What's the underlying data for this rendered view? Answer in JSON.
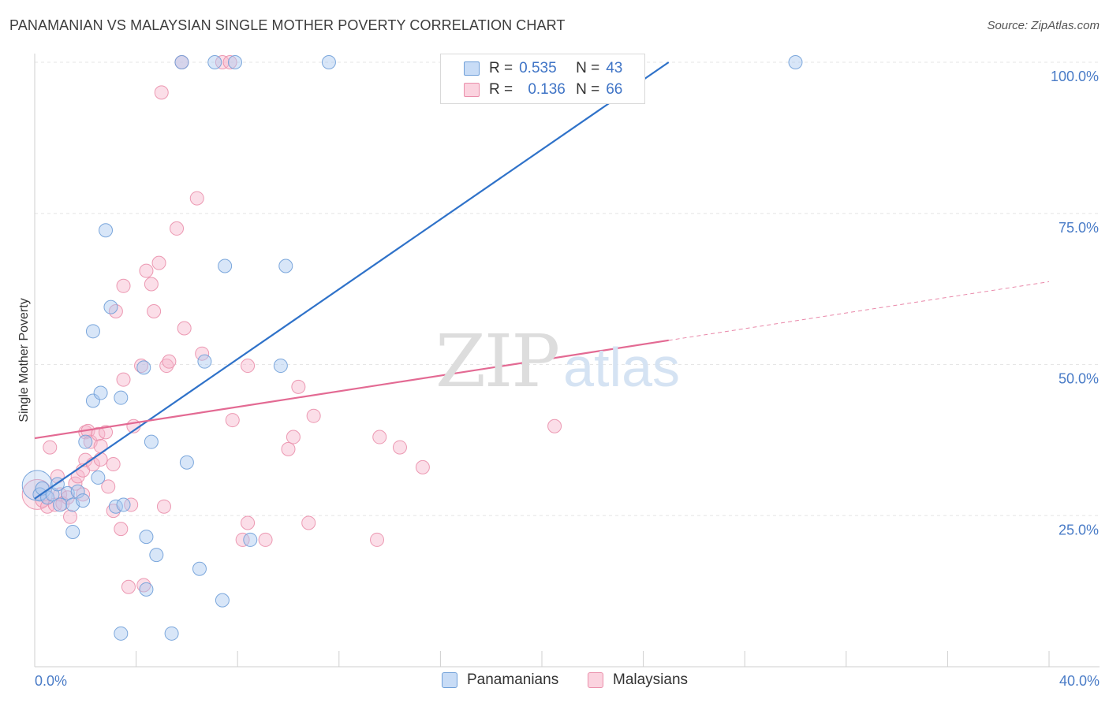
{
  "title": "PANAMANIAN VS MALAYSIAN SINGLE MOTHER POVERTY CORRELATION CHART",
  "source": "Source: ZipAtlas.com",
  "watermark": {
    "zip": "ZIP",
    "atlas": "atlas"
  },
  "legend": {
    "rows": [
      {
        "r_label": "R =",
        "r_value": "0.535",
        "n_label": "N =",
        "n_value": "43",
        "color": "#a8c8f0"
      },
      {
        "r_label": "R =",
        "r_value": "0.136",
        "n_label": "N =",
        "n_value": "66",
        "color": "#f7b6cb"
      }
    ]
  },
  "bottom_legend": {
    "series1": "Panamanians",
    "series2": "Malaysians"
  },
  "colors": {
    "blue_fill": "#a8c8f0",
    "blue_stroke": "#6f9fd8",
    "blue_line": "#2f72c9",
    "pink_fill": "#f7b6cb",
    "pink_stroke": "#ea8fab",
    "pink_line": "#e36a93",
    "axis_text": "#4a7cc7",
    "grid": "#e6e6e6"
  },
  "chart_data": {
    "type": "scatter",
    "title": "PANAMANIAN VS MALAYSIAN SINGLE MOTHER POVERTY CORRELATION CHART",
    "xlabel": "",
    "ylabel": "Single Mother Poverty",
    "xlim": [
      0,
      40
    ],
    "ylim": [
      0,
      105
    ],
    "x_tick_labels": [
      "0.0%",
      "40.0%"
    ],
    "y_tick_labels": [
      "25.0%",
      "50.0%",
      "75.0%",
      "100.0%"
    ],
    "y_ticks": [
      25,
      50,
      75,
      100
    ],
    "grid": true,
    "legend_position": "top-center",
    "series": [
      {
        "name": "Panamanians",
        "r": 0.535,
        "n": 43,
        "trend": {
          "x": [
            0.0,
            25.0
          ],
          "y": [
            27.8,
            100.0
          ],
          "dashed_extension": false
        },
        "points": [
          {
            "x": 0.1,
            "y": 30.0,
            "big": true
          },
          {
            "x": 0.2,
            "y": 28.5
          },
          {
            "x": 0.3,
            "y": 29.5
          },
          {
            "x": 0.5,
            "y": 28.0
          },
          {
            "x": 0.7,
            "y": 28.5
          },
          {
            "x": 0.9,
            "y": 30.2
          },
          {
            "x": 1.0,
            "y": 26.8
          },
          {
            "x": 1.3,
            "y": 28.7
          },
          {
            "x": 1.5,
            "y": 26.8
          },
          {
            "x": 1.5,
            "y": 22.3
          },
          {
            "x": 1.7,
            "y": 29.0
          },
          {
            "x": 1.9,
            "y": 27.5
          },
          {
            "x": 2.0,
            "y": 37.2
          },
          {
            "x": 2.3,
            "y": 44.0
          },
          {
            "x": 2.3,
            "y": 55.5
          },
          {
            "x": 2.5,
            "y": 31.3
          },
          {
            "x": 2.6,
            "y": 45.3
          },
          {
            "x": 2.8,
            "y": 72.2
          },
          {
            "x": 3.0,
            "y": 59.5
          },
          {
            "x": 3.2,
            "y": 26.5
          },
          {
            "x": 3.4,
            "y": 44.5
          },
          {
            "x": 3.4,
            "y": 5.5
          },
          {
            "x": 3.5,
            "y": 26.8
          },
          {
            "x": 4.3,
            "y": 49.5
          },
          {
            "x": 4.4,
            "y": 12.8
          },
          {
            "x": 4.4,
            "y": 21.5
          },
          {
            "x": 4.6,
            "y": 37.2
          },
          {
            "x": 4.8,
            "y": 18.5
          },
          {
            "x": 5.4,
            "y": 5.5
          },
          {
            "x": 5.8,
            "y": 100.0
          },
          {
            "x": 6.0,
            "y": 33.8
          },
          {
            "x": 6.5,
            "y": 16.2
          },
          {
            "x": 6.7,
            "y": 50.5
          },
          {
            "x": 7.1,
            "y": 100.0
          },
          {
            "x": 7.4,
            "y": 11.0
          },
          {
            "x": 7.5,
            "y": 66.3
          },
          {
            "x": 7.9,
            "y": 100.0
          },
          {
            "x": 8.5,
            "y": 21.0
          },
          {
            "x": 9.7,
            "y": 49.8
          },
          {
            "x": 9.9,
            "y": 66.3
          },
          {
            "x": 11.6,
            "y": 100.0
          },
          {
            "x": 30.0,
            "y": 100.0
          }
        ]
      },
      {
        "name": "Malaysians",
        "r": 0.136,
        "n": 66,
        "trend": {
          "x": [
            0.0,
            25.0,
            40.0
          ],
          "y": [
            37.8,
            54.0,
            63.7
          ],
          "dashed_from_x": 25.0
        },
        "points": [
          {
            "x": 0.1,
            "y": 28.5,
            "big": true
          },
          {
            "x": 0.3,
            "y": 27.5
          },
          {
            "x": 0.5,
            "y": 26.5
          },
          {
            "x": 0.6,
            "y": 36.3
          },
          {
            "x": 0.8,
            "y": 26.8
          },
          {
            "x": 0.9,
            "y": 31.5
          },
          {
            "x": 1.0,
            "y": 28.5
          },
          {
            "x": 1.1,
            "y": 27.0
          },
          {
            "x": 1.3,
            "y": 28.0
          },
          {
            "x": 1.4,
            "y": 24.8
          },
          {
            "x": 1.6,
            "y": 30.3
          },
          {
            "x": 1.7,
            "y": 31.5
          },
          {
            "x": 1.9,
            "y": 32.5
          },
          {
            "x": 1.9,
            "y": 28.5
          },
          {
            "x": 2.0,
            "y": 38.8
          },
          {
            "x": 2.0,
            "y": 34.2
          },
          {
            "x": 2.1,
            "y": 39.0
          },
          {
            "x": 2.2,
            "y": 37.2
          },
          {
            "x": 2.3,
            "y": 33.5
          },
          {
            "x": 2.5,
            "y": 38.5
          },
          {
            "x": 2.6,
            "y": 36.5
          },
          {
            "x": 2.6,
            "y": 34.3
          },
          {
            "x": 2.8,
            "y": 38.8
          },
          {
            "x": 2.9,
            "y": 29.8
          },
          {
            "x": 3.1,
            "y": 33.5
          },
          {
            "x": 3.1,
            "y": 25.8
          },
          {
            "x": 3.2,
            "y": 58.8
          },
          {
            "x": 3.4,
            "y": 22.8
          },
          {
            "x": 3.5,
            "y": 63.0
          },
          {
            "x": 3.5,
            "y": 47.5
          },
          {
            "x": 3.7,
            "y": 13.2
          },
          {
            "x": 3.8,
            "y": 26.8
          },
          {
            "x": 3.9,
            "y": 39.8
          },
          {
            "x": 4.2,
            "y": 49.8
          },
          {
            "x": 4.3,
            "y": 13.5
          },
          {
            "x": 4.4,
            "y": 65.5
          },
          {
            "x": 4.6,
            "y": 63.3
          },
          {
            "x": 4.7,
            "y": 58.8
          },
          {
            "x": 4.9,
            "y": 66.8
          },
          {
            "x": 5.0,
            "y": 95.0
          },
          {
            "x": 5.1,
            "y": 26.5
          },
          {
            "x": 5.2,
            "y": 49.8
          },
          {
            "x": 5.3,
            "y": 50.5
          },
          {
            "x": 5.6,
            "y": 72.5
          },
          {
            "x": 5.8,
            "y": 100.0
          },
          {
            "x": 5.9,
            "y": 56.0
          },
          {
            "x": 6.4,
            "y": 77.5
          },
          {
            "x": 6.6,
            "y": 51.8
          },
          {
            "x": 7.4,
            "y": 100.0
          },
          {
            "x": 7.7,
            "y": 100.0
          },
          {
            "x": 7.8,
            "y": 40.8
          },
          {
            "x": 8.2,
            "y": 21.0
          },
          {
            "x": 8.4,
            "y": 49.8
          },
          {
            "x": 8.4,
            "y": 23.8
          },
          {
            "x": 9.1,
            "y": 21.0
          },
          {
            "x": 10.0,
            "y": 36.0
          },
          {
            "x": 10.2,
            "y": 38.0
          },
          {
            "x": 10.4,
            "y": 46.3
          },
          {
            "x": 10.8,
            "y": 23.8
          },
          {
            "x": 11.0,
            "y": 41.5
          },
          {
            "x": 13.5,
            "y": 21.0
          },
          {
            "x": 13.6,
            "y": 38.0
          },
          {
            "x": 14.4,
            "y": 36.3
          },
          {
            "x": 15.3,
            "y": 33.0
          },
          {
            "x": 20.5,
            "y": 39.8
          }
        ]
      }
    ]
  }
}
